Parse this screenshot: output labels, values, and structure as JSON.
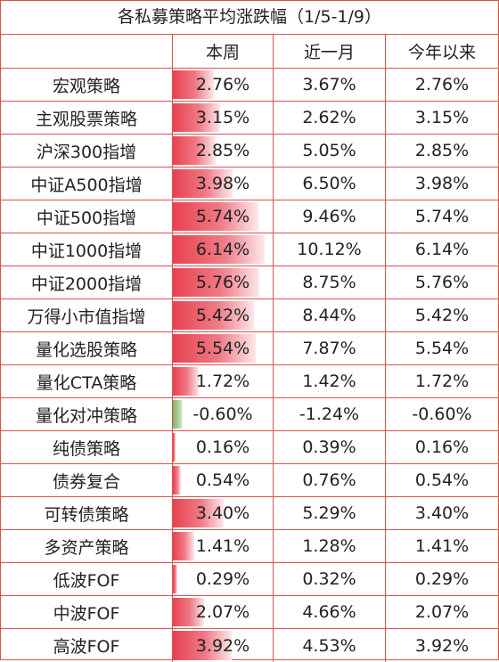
{
  "title": "各私募策略平均涨跌幅（1/5-1/9）",
  "columns": [
    "",
    "本周",
    "近一月",
    "今年以来"
  ],
  "rows": [
    {
      "name": "宏观策略",
      "week": "2.76%",
      "month": "3.67%",
      "ytd": "2.76%"
    },
    {
      "name": "主观股票策略",
      "week": "3.15%",
      "month": "2.62%",
      "ytd": "3.15%"
    },
    {
      "name": "沪深300指增",
      "week": "2.85%",
      "month": "5.05%",
      "ytd": "2.85%"
    },
    {
      "name": "中证A500指增",
      "week": "3.98%",
      "month": "6.50%",
      "ytd": "3.98%"
    },
    {
      "name": "中证500指增",
      "week": "5.74%",
      "month": "9.46%",
      "ytd": "5.74%"
    },
    {
      "name": "中证1000指增",
      "week": "6.14%",
      "month": "10.12%",
      "ytd": "6.14%"
    },
    {
      "name": "中证2000指增",
      "week": "5.76%",
      "month": "8.75%",
      "ytd": "5.76%"
    },
    {
      "name": "万得小市值指增",
      "week": "5.42%",
      "month": "8.44%",
      "ytd": "5.42%"
    },
    {
      "name": "量化选股策略",
      "week": "5.54%",
      "month": "7.87%",
      "ytd": "5.54%"
    },
    {
      "name": "量化CTA策略",
      "week": "1.72%",
      "month": "1.42%",
      "ytd": "1.72%"
    },
    {
      "name": "量化对冲策略",
      "week": "-0.60%",
      "month": "-1.24%",
      "ytd": "-0.60%"
    },
    {
      "name": "纯债策略",
      "week": "0.16%",
      "month": "0.39%",
      "ytd": "0.16%"
    },
    {
      "name": "债券复合",
      "week": "0.54%",
      "month": "0.76%",
      "ytd": "0.54%"
    },
    {
      "name": "可转债策略",
      "week": "3.40%",
      "month": "5.29%",
      "ytd": "3.40%"
    },
    {
      "name": "多资产策略",
      "week": "1.41%",
      "month": "1.28%",
      "ytd": "1.41%"
    },
    {
      "name": "低波FOF",
      "week": "0.29%",
      "month": "0.32%",
      "ytd": "0.29%"
    },
    {
      "name": "中波FOF",
      "week": "2.07%",
      "month": "4.66%",
      "ytd": "2.07%"
    },
    {
      "name": "高波FOF",
      "week": "3.92%",
      "month": "4.53%",
      "ytd": "3.92%"
    }
  ],
  "chart_data": {
    "type": "table",
    "title": "各私募策略平均涨跌幅（1/5-1/9）",
    "columns": [
      "本周",
      "近一月",
      "今年以来"
    ],
    "categories": [
      "宏观策略",
      "主观股票策略",
      "沪深300指增",
      "中证A500指增",
      "中证500指增",
      "中证1000指增",
      "中证2000指增",
      "万得小市值指增",
      "量化选股策略",
      "量化CTA策略",
      "量化对冲策略",
      "纯债策略",
      "债券复合",
      "可转债策略",
      "多资产策略",
      "低波FOF",
      "中波FOF",
      "高波FOF"
    ],
    "series": [
      {
        "name": "本周",
        "values": [
          2.76,
          3.15,
          2.85,
          3.98,
          5.74,
          6.14,
          5.76,
          5.42,
          5.54,
          1.72,
          -0.6,
          0.16,
          0.54,
          3.4,
          1.41,
          0.29,
          2.07,
          3.92
        ]
      },
      {
        "name": "近一月",
        "values": [
          3.67,
          2.62,
          5.05,
          6.5,
          9.46,
          10.12,
          8.75,
          8.44,
          7.87,
          1.42,
          -1.24,
          0.39,
          0.76,
          5.29,
          1.28,
          0.32,
          4.66,
          4.53
        ]
      },
      {
        "name": "今年以来",
        "values": [
          2.76,
          3.15,
          2.85,
          3.98,
          5.74,
          6.14,
          5.76,
          5.42,
          5.54,
          1.72,
          -0.6,
          0.16,
          0.54,
          3.4,
          1.41,
          0.29,
          2.07,
          3.92
        ]
      }
    ],
    "data_bar_column": "本周",
    "data_bar_max": 6.14,
    "colors": {
      "positive_bar": "#e8414f",
      "negative_bar": "#7db46b",
      "border": "#d9534f"
    }
  }
}
